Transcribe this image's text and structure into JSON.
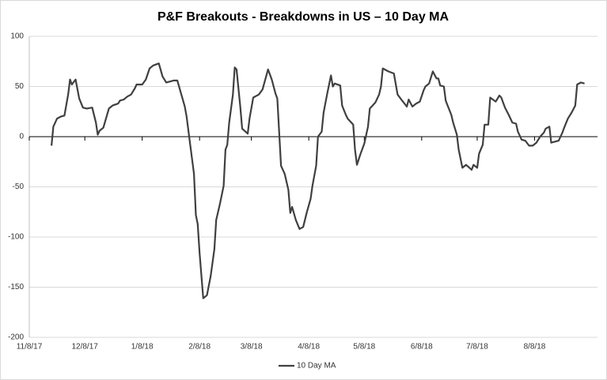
{
  "chart_data": {
    "type": "line",
    "title": "P&F Breakouts - Breakdowns in US – 10 Day MA",
    "x": [
      "2017-11-20",
      "2017-11-21",
      "2017-11-23",
      "2017-11-25",
      "2017-11-27",
      "2017-11-29",
      "2017-11-30",
      "2017-12-01",
      "2017-12-03",
      "2017-12-05",
      "2017-12-07",
      "2017-12-09",
      "2017-12-12",
      "2017-12-14",
      "2017-12-15",
      "2017-12-16",
      "2017-12-18",
      "2017-12-21",
      "2017-12-23",
      "2017-12-26",
      "2017-12-27",
      "2017-12-29",
      "2017-12-31",
      "2018-01-02",
      "2018-01-04",
      "2018-01-05",
      "2018-01-08",
      "2018-01-10",
      "2018-01-12",
      "2018-01-14",
      "2018-01-17",
      "2018-01-19",
      "2018-01-21",
      "2018-01-25",
      "2018-01-27",
      "2018-01-29",
      "2018-01-31",
      "2018-02-01",
      "2018-02-03",
      "2018-02-05",
      "2018-02-06",
      "2018-02-07",
      "2018-02-08",
      "2018-02-10",
      "2018-02-12",
      "2018-02-14",
      "2018-02-16",
      "2018-02-17",
      "2018-02-19",
      "2018-02-21",
      "2018-02-22",
      "2018-02-23",
      "2018-02-24",
      "2018-02-26",
      "2018-02-27",
      "2018-02-28",
      "2018-03-02",
      "2018-03-03",
      "2018-03-06",
      "2018-03-07",
      "2018-03-09",
      "2018-03-12",
      "2018-03-14",
      "2018-03-17",
      "2018-03-19",
      "2018-03-21",
      "2018-03-22",
      "2018-03-24",
      "2018-03-26",
      "2018-03-28",
      "2018-03-29",
      "2018-03-30",
      "2018-04-01",
      "2018-04-03",
      "2018-04-05",
      "2018-04-07",
      "2018-04-09",
      "2018-04-10",
      "2018-04-12",
      "2018-04-13",
      "2018-04-15",
      "2018-04-16",
      "2018-04-18",
      "2018-04-20",
      "2018-04-21",
      "2018-04-22",
      "2018-04-25",
      "2018-04-26",
      "2018-04-28",
      "2018-04-29",
      "2018-05-02",
      "2018-05-03",
      "2018-05-04",
      "2018-05-06",
      "2018-05-08",
      "2018-05-10",
      "2018-05-11",
      "2018-05-14",
      "2018-05-16",
      "2018-05-17",
      "2018-05-18",
      "2018-05-21",
      "2018-05-24",
      "2018-05-26",
      "2018-05-28",
      "2018-05-31",
      "2018-06-01",
      "2018-06-03",
      "2018-06-05",
      "2018-06-07",
      "2018-06-09",
      "2018-06-10",
      "2018-06-12",
      "2018-06-14",
      "2018-06-16",
      "2018-06-17",
      "2018-06-18",
      "2018-06-20",
      "2018-06-21",
      "2018-06-22",
      "2018-06-24",
      "2018-06-25",
      "2018-06-27",
      "2018-06-28",
      "2018-06-30",
      "2018-07-02",
      "2018-07-05",
      "2018-07-06",
      "2018-07-08",
      "2018-07-09",
      "2018-07-11",
      "2018-07-12",
      "2018-07-14",
      "2018-07-15",
      "2018-07-18",
      "2018-07-20",
      "2018-07-21",
      "2018-07-23",
      "2018-07-25",
      "2018-07-27",
      "2018-07-29",
      "2018-07-30",
      "2018-08-01",
      "2018-08-03",
      "2018-08-05",
      "2018-08-07",
      "2018-08-09",
      "2018-08-11",
      "2018-08-13",
      "2018-08-14",
      "2018-08-16",
      "2018-08-17",
      "2018-08-21",
      "2018-08-23",
      "2018-08-24",
      "2018-08-26",
      "2018-08-28",
      "2018-08-30",
      "2018-08-31",
      "2018-09-02",
      "2018-09-04"
    ],
    "series": [
      {
        "name": "10 Day MA",
        "color": "#404040",
        "values": [
          -9,
          10,
          18,
          20,
          21,
          42,
          57,
          52,
          57,
          38,
          29,
          28,
          29,
          14,
          2,
          6,
          9,
          28,
          31,
          33,
          36,
          37,
          40,
          42,
          48,
          52,
          52,
          57,
          68,
          71,
          73,
          60,
          54,
          56,
          56,
          43,
          30,
          20,
          -9,
          -37,
          -78,
          -87,
          -116,
          -161,
          -158,
          -139,
          -112,
          -83,
          -67,
          -49,
          -13,
          -8,
          14,
          42,
          69,
          67,
          30,
          8,
          3,
          18,
          39,
          42,
          47,
          67,
          57,
          43,
          38,
          -29,
          -37,
          -53,
          -76,
          -70,
          -83,
          -92,
          -90,
          -75,
          -62,
          -49,
          -29,
          0,
          5,
          24,
          43,
          61,
          50,
          53,
          51,
          31,
          22,
          18,
          12,
          -13,
          -28,
          -17,
          -7,
          10,
          28,
          34,
          42,
          50,
          68,
          65,
          63,
          42,
          37,
          30,
          37,
          30,
          33,
          35,
          46,
          50,
          53,
          65,
          58,
          58,
          51,
          50,
          36,
          31,
          22,
          14,
          2,
          -13,
          -31,
          -28,
          -33,
          -28,
          -31,
          -17,
          -8,
          12,
          12,
          39,
          35,
          41,
          39,
          29,
          22,
          14,
          13,
          5,
          -3,
          -4,
          -9,
          -9,
          -6,
          0,
          4,
          8,
          10,
          -6,
          -4,
          4,
          9,
          18,
          24,
          31,
          52,
          54,
          53
        ]
      }
    ],
    "xlim": [
      "2017-11-08",
      "2018-09-11"
    ],
    "xticks": [
      {
        "value": "2017-11-08",
        "label": "11/8/17"
      },
      {
        "value": "2017-12-08",
        "label": "12/8/17"
      },
      {
        "value": "2018-01-08",
        "label": "1/8/18"
      },
      {
        "value": "2018-02-08",
        "label": "2/8/18"
      },
      {
        "value": "2018-03-08",
        "label": "3/8/18"
      },
      {
        "value": "2018-04-08",
        "label": "4/8/18"
      },
      {
        "value": "2018-05-08",
        "label": "5/8/18"
      },
      {
        "value": "2018-06-08",
        "label": "6/8/18"
      },
      {
        "value": "2018-07-08",
        "label": "7/8/18"
      },
      {
        "value": "2018-08-08",
        "label": "8/8/18"
      }
    ],
    "ylim": [
      -200,
      100
    ],
    "yticks": [
      -200,
      -150,
      -100,
      -50,
      0,
      50,
      100
    ],
    "grid": true,
    "legend": "bottom"
  }
}
